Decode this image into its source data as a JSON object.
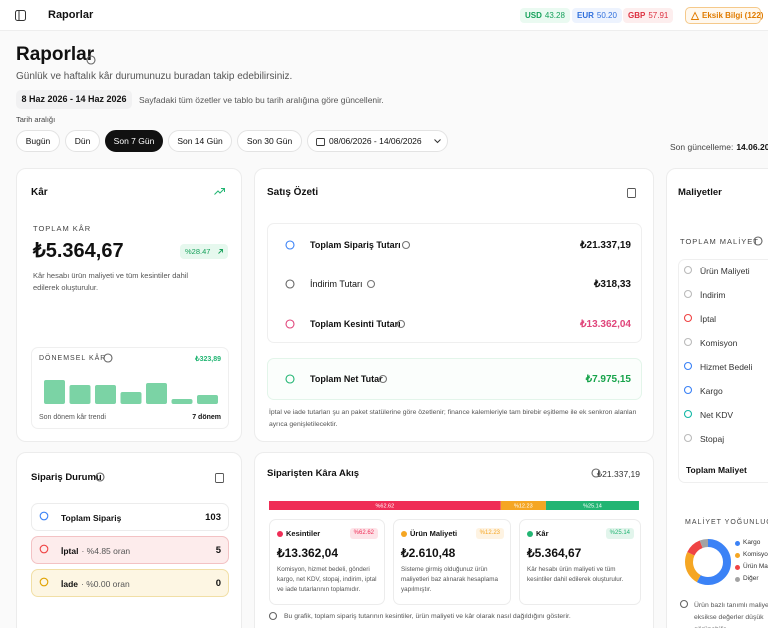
{
  "topbar": {
    "title": "Raporlar",
    "rates": [
      {
        "code": "USD",
        "value": "43.28",
        "color": "#15a05a",
        "bg": "#eafaf1"
      },
      {
        "code": "EUR",
        "value": "50.20",
        "color": "#2f6fdc",
        "bg": "#edf3fe"
      },
      {
        "code": "GBP",
        "value": "57.91",
        "color": "#dc2f3f",
        "bg": "#fdeeee"
      }
    ],
    "warning": "Eksik Bilgi (122)"
  },
  "header": {
    "title": "Raporlar",
    "subtitle": "Günlük ve haftalık kâr durumunuzu buradan takip edebilirsiniz.",
    "date_range": "8 Haz 2026 - 14 Haz 2026",
    "date_note": "Sayfadaki tüm özetler ve tablo bu tarih aralığına göre güncellenir.",
    "range_label": "Tarih aralığı",
    "ranges": [
      "Bugün",
      "Dün",
      "Son 7 Gün",
      "Son 14 Gün",
      "Son 30 Gün"
    ],
    "active_range": 2,
    "custom_range": "08/06/2026 - 14/06/2026",
    "updated_label": "Son güncelleme:",
    "updated_value": "14.06.20"
  },
  "profit": {
    "title": "Kâr",
    "total_label": "TOPLAM KÂR",
    "total_value": "₺5.364,67",
    "change": "%28.47",
    "note": "Kâr hesabı ürün maliyeti ve tüm kesintiler dahil edilerek oluşturulur.",
    "period": {
      "label": "DÖNEMSEL KÂR",
      "max_value": 323.89,
      "max_label": "₺323,89",
      "bars": [
        323.89,
        256,
        256,
        162,
        283,
        67,
        121
      ],
      "footer_left": "Son dönem kâr trendi",
      "footer_right": "7 dönem"
    }
  },
  "sales": {
    "title": "Satış Özeti",
    "rows": [
      {
        "label": "Toplam Sipariş Tutarı",
        "value": "₺21.337,19",
        "color": "#111111"
      },
      {
        "label": "İndirim Tutarı",
        "value": "₺318,33",
        "color": "#111111"
      },
      {
        "label": "Toplam Kesinti Tutarı",
        "value": "₺13.362,04",
        "color": "#e0457b"
      },
      {
        "label": "Toplam Net Tutar",
        "value": "₺7.975,15",
        "color": "#16a34a"
      }
    ],
    "note": "İptal ve iade tutarları şu an paket statülerine göre özetlenir; finance kalemleriyle tam birebir eşitleme ile ek senkron alanları ayrıca genişletilecektir."
  },
  "costs": {
    "title": "Maliyetler",
    "total_label": "TOPLAM MALİYET",
    "items": [
      "Ürün Maliyeti",
      "İndirim",
      "İptal",
      "Komisyon",
      "Hizmet Bedeli",
      "Kargo",
      "Net KDV",
      "Stopaj"
    ],
    "total_row": "Toplam Maliyet",
    "density": {
      "label": "MALİYET YOĞUNLUĞU",
      "segments": [
        {
          "name": "Kargo",
          "value": 58,
          "color": "#3b82f6"
        },
        {
          "name": "Komisyon",
          "value": 24,
          "color": "#f5a623"
        },
        {
          "name": "Ürün Maliyeti",
          "value": 12,
          "color": "#ef4444"
        },
        {
          "name": "Diğer",
          "value": 6,
          "color": "#a3a3a3"
        }
      ]
    },
    "note": "Ürün bazlı tanımlı maliyetler eksikse değerler düşük görünebilir."
  },
  "orders": {
    "title": "Sipariş Durumu",
    "rows": [
      {
        "label": "Toplam Sipariş",
        "value": "103"
      },
      {
        "label": "İptal",
        "rate": "· %4.85 oran",
        "value": "5"
      },
      {
        "label": "İade",
        "rate": "· %0.00 oran",
        "value": "0"
      }
    ]
  },
  "flow": {
    "title": "Siparişten Kâra Akış",
    "total": "₺21.337,19",
    "segments": [
      {
        "name": "Kesintiler",
        "value": 62.62,
        "label": "%62.62",
        "color": "#ef2d56",
        "amount": "₺13.362,04",
        "description": "Komisyon, hizmet bedeli, gönderi kargo, net KDV, stopaj, indirim, iptal ve iade tutarlarının toplamıdır."
      },
      {
        "name": "Ürün Maliyeti",
        "value": 12.23,
        "label": "%12.23",
        "color": "#f5a623",
        "amount": "₺2.610,48",
        "description": "Sisteme girmiş olduğunuz ürün maliyetleri baz alınarak hesaplama yapılmıştır."
      },
      {
        "name": "Kâr",
        "value": 25.14,
        "label": "%25.14",
        "color": "#22b573",
        "amount": "₺5.364,67",
        "description": "Kâr hesabı ürün maliyeti ve tüm kesintiler dahil edilerek oluşturulur."
      }
    ],
    "footer": "Bu grafik, toplam sipariş tutarının kesintiler, ürün maliyeti ve kâr olarak nasıl dağıldığını gösterir."
  }
}
